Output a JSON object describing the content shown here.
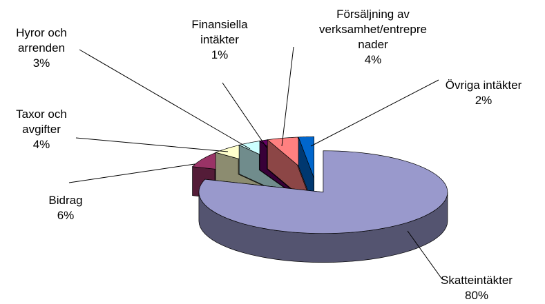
{
  "chart_data": {
    "type": "pie3d",
    "categories": [
      "Skatteintäkter",
      "Bidrag",
      "Taxor och avgifter",
      "Hyror och arrenden",
      "Finansiella intäkter",
      "Försäljning av verksamhet/entreprenader",
      "Övriga intäkter"
    ],
    "values": [
      80,
      6,
      4,
      3,
      1,
      4,
      2
    ],
    "value_labels": [
      "80%",
      "6%",
      "4%",
      "3%",
      "1%",
      "4%",
      "2%"
    ],
    "colors": [
      "#9999cc",
      "#993366",
      "#ffffcc",
      "#ccffff",
      "#660066",
      "#ff8080",
      "#0066cc"
    ]
  }
}
